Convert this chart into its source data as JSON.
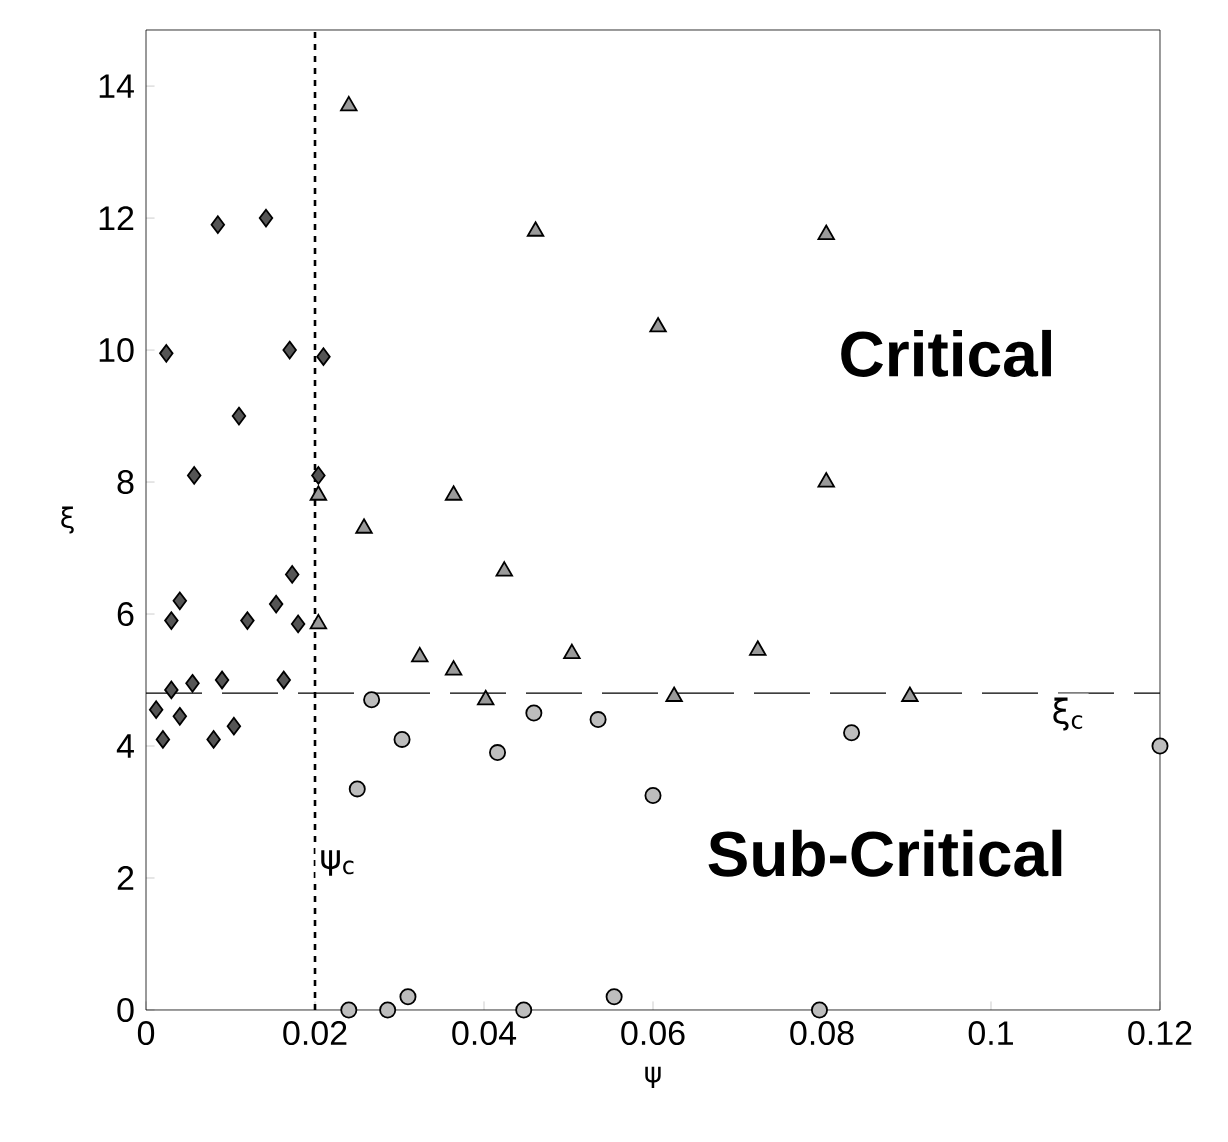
{
  "chart_data": {
    "type": "scatter",
    "xlabel": "ψ",
    "ylabel": "ξ",
    "xlim": [
      0,
      0.12
    ],
    "ylim": [
      0,
      14.85
    ],
    "xticks": [
      0,
      0.02,
      0.04,
      0.06,
      0.08,
      0.1,
      0.12
    ],
    "yticks": [
      0,
      2,
      4,
      6,
      8,
      10,
      12,
      14
    ],
    "grid": false,
    "series": [
      {
        "marker": "diamond",
        "color": "#555555",
        "x": [
          0.0012,
          0.002,
          0.003,
          0.003,
          0.004,
          0.004,
          0.0055,
          0.008,
          0.0104,
          0.009,
          0.012,
          0.0154,
          0.0163,
          0.0173,
          0.018,
          0.0085,
          0.0142,
          0.0024,
          0.017,
          0.021,
          0.011,
          0.0057,
          0.0204
        ],
        "values": [
          4.55,
          4.1,
          4.85,
          5.9,
          6.2,
          4.45,
          4.95,
          4.1,
          4.3,
          5.0,
          5.9,
          6.15,
          5.0,
          6.6,
          5.85,
          11.9,
          12.0,
          9.95,
          10.0,
          9.9,
          9.0,
          8.1,
          8.1
        ]
      },
      {
        "marker": "triangle",
        "color": "#9a9a9a",
        "x": [
          0.0204,
          0.0204,
          0.024,
          0.0364,
          0.0258,
          0.0424,
          0.0461,
          0.0805,
          0.0606,
          0.0805,
          0.0504,
          0.0724,
          0.0364,
          0.0324,
          0.0402,
          0.0625,
          0.0904
        ],
        "values": [
          5.85,
          7.8,
          13.7,
          7.8,
          7.3,
          6.65,
          11.8,
          11.75,
          10.35,
          8.0,
          5.4,
          5.45,
          5.15,
          5.35,
          4.7,
          4.75,
          4.75
        ]
      },
      {
        "marker": "circle",
        "color": "#bdbdbd",
        "x": [
          0.0267,
          0.0303,
          0.025,
          0.0416,
          0.0459,
          0.0535,
          0.06,
          0.0835,
          0.12,
          0.024,
          0.0286,
          0.031,
          0.0447,
          0.0554,
          0.0797
        ],
        "values": [
          4.7,
          4.1,
          3.35,
          3.9,
          4.5,
          4.4,
          3.25,
          4.2,
          4.0,
          0,
          0,
          0.2,
          0,
          0.2,
          0
        ]
      }
    ],
    "ref_lines": [
      {
        "axis": "x",
        "value": 0.02,
        "label": "ψ$_{c}$",
        "line_style": "dashed"
      },
      {
        "axis": "y",
        "value": 4.8,
        "label": "ξ$_{c}$",
        "line_style": "loosely dashed"
      }
    ],
    "annotations": [
      "Critical",
      "Sub-Critical"
    ]
  }
}
